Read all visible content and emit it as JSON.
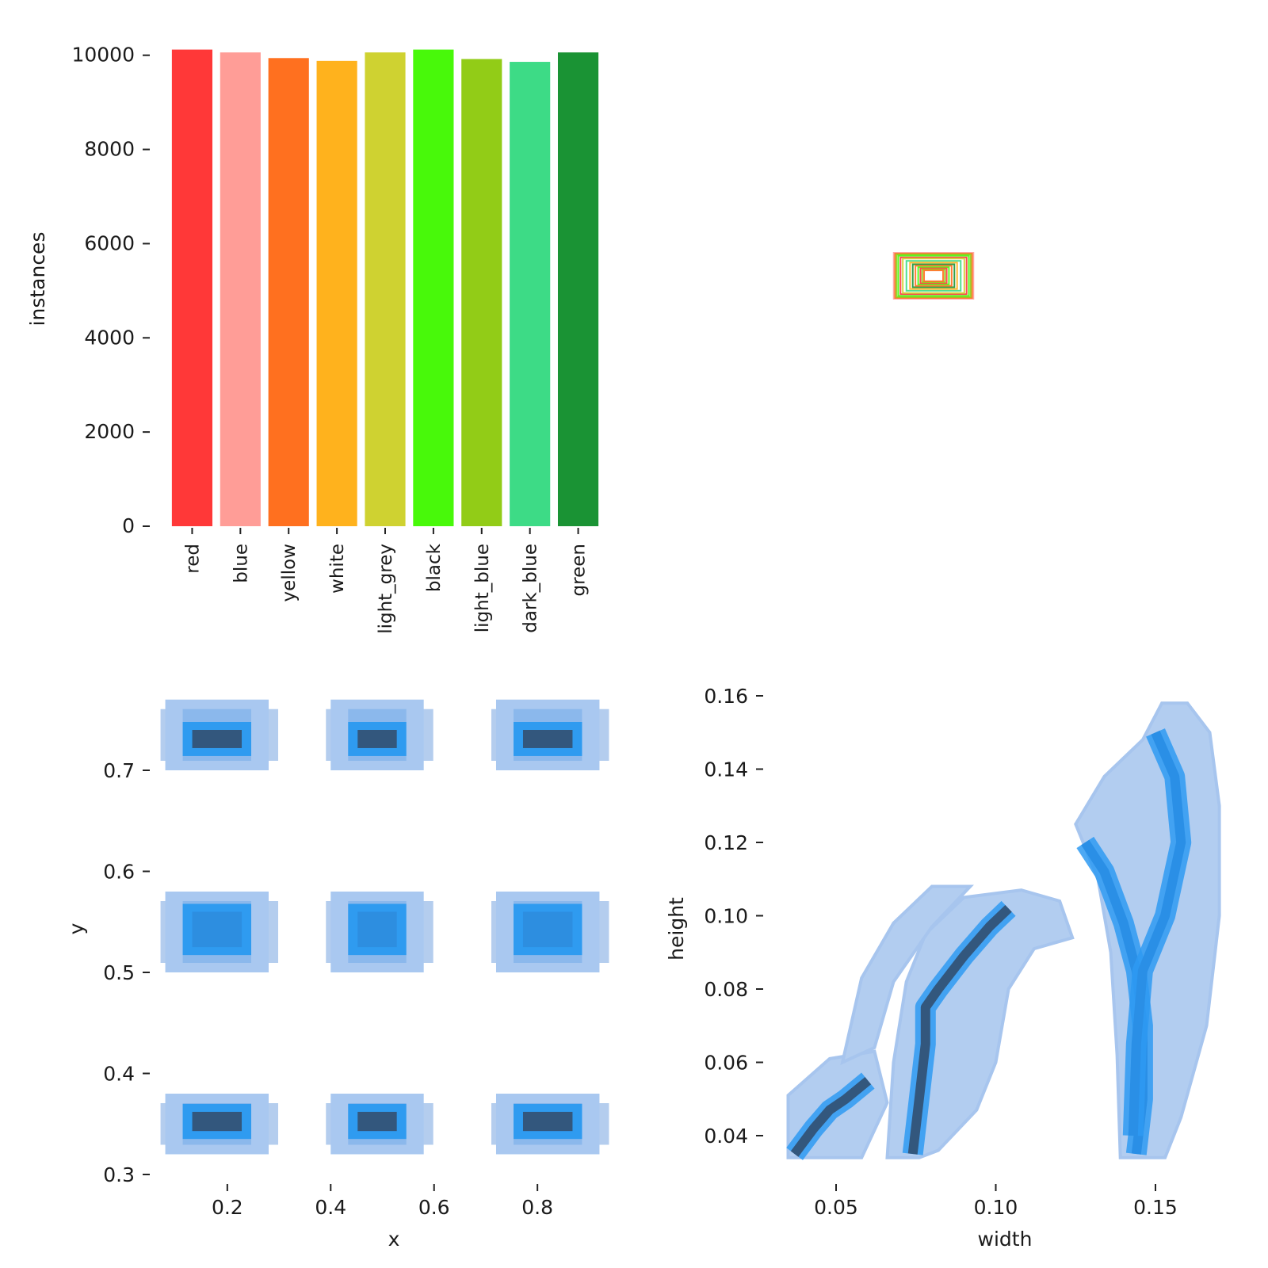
{
  "chart_data": [
    {
      "type": "bar",
      "ylabel": "instances",
      "xlabel": "",
      "ylim": [
        0,
        10500
      ],
      "yticks": [
        0,
        2000,
        4000,
        6000,
        8000,
        10000
      ],
      "categories": [
        "red",
        "blue",
        "yellow",
        "white",
        "light_grey",
        "black",
        "light_blue",
        "dark_blue",
        "green"
      ],
      "values": [
        10120,
        10060,
        9940,
        9880,
        10060,
        10120,
        9920,
        9860,
        10060
      ],
      "colors": [
        "#ff3838",
        "#ff9d97",
        "#ff701f",
        "#ffb21d",
        "#cfd231",
        "#48f90a",
        "#92cc17",
        "#3ddb86",
        "#1a9334"
      ]
    },
    {
      "type": "box_overlay",
      "description_level": "nested rectangles centered at 0.5,0.5",
      "boxes": [
        {
          "w": 0.176,
          "h": 0.16,
          "color": "#ff9d97"
        },
        {
          "w": 0.17,
          "h": 0.154,
          "color": "#ff701f"
        },
        {
          "w": 0.164,
          "h": 0.148,
          "color": "#92cc17"
        },
        {
          "w": 0.156,
          "h": 0.14,
          "color": "#48f90a"
        },
        {
          "w": 0.146,
          "h": 0.128,
          "color": "#ff3838"
        },
        {
          "w": 0.136,
          "h": 0.12,
          "color": "#cfd231"
        },
        {
          "w": 0.12,
          "h": 0.104,
          "color": "#3ddb86"
        },
        {
          "w": 0.104,
          "h": 0.092,
          "color": "#ffb21d"
        },
        {
          "w": 0.092,
          "h": 0.08,
          "color": "#1a9334"
        },
        {
          "w": 0.08,
          "h": 0.07,
          "color": "#ff701f"
        },
        {
          "w": 0.068,
          "h": 0.06,
          "color": "#48f90a"
        },
        {
          "w": 0.058,
          "h": 0.052,
          "color": "#ff3838"
        },
        {
          "w": 0.05,
          "h": 0.044,
          "color": "#92cc17"
        },
        {
          "w": 0.042,
          "h": 0.038,
          "color": "#ff701f"
        }
      ]
    },
    {
      "type": "heatmap",
      "xlabel": "x",
      "ylabel": "y",
      "xlim": [
        0.05,
        0.95
      ],
      "ylim": [
        0.3,
        0.78
      ],
      "xticks": [
        0.2,
        0.4,
        0.6,
        0.8
      ],
      "yticks": [
        0.3,
        0.4,
        0.5,
        0.6,
        0.7
      ],
      "clusters": [
        {
          "x": [
            0.08,
            0.28
          ],
          "y": [
            0.32,
            0.38
          ],
          "core_y": [
            0.343,
            0.362
          ],
          "core": "dark"
        },
        {
          "x": [
            0.4,
            0.58
          ],
          "y": [
            0.32,
            0.38
          ],
          "core_y": [
            0.343,
            0.362
          ],
          "core": "dark"
        },
        {
          "x": [
            0.72,
            0.92
          ],
          "y": [
            0.32,
            0.38
          ],
          "core_y": [
            0.343,
            0.362
          ],
          "core": "dark"
        },
        {
          "x": [
            0.08,
            0.28
          ],
          "y": [
            0.5,
            0.58
          ],
          "core_y": [
            0.525,
            0.56
          ],
          "core": "mid"
        },
        {
          "x": [
            0.4,
            0.58
          ],
          "y": [
            0.5,
            0.58
          ],
          "core_y": [
            0.525,
            0.56
          ],
          "core": "mid"
        },
        {
          "x": [
            0.72,
            0.92
          ],
          "y": [
            0.5,
            0.58
          ],
          "core_y": [
            0.525,
            0.56
          ],
          "core": "mid"
        },
        {
          "x": [
            0.08,
            0.28
          ],
          "y": [
            0.7,
            0.77
          ],
          "core_y": [
            0.722,
            0.74
          ],
          "core": "dark"
        },
        {
          "x": [
            0.4,
            0.58
          ],
          "y": [
            0.7,
            0.77
          ],
          "core_y": [
            0.722,
            0.74
          ],
          "core": "dark"
        },
        {
          "x": [
            0.72,
            0.92
          ],
          "y": [
            0.7,
            0.77
          ],
          "core_y": [
            0.722,
            0.74
          ],
          "core": "dark"
        }
      ]
    },
    {
      "type": "heatmap",
      "xlabel": "width",
      "ylabel": "height",
      "xlim": [
        0.034,
        0.176
      ],
      "ylim": [
        0.034,
        0.16
      ],
      "xticks": [
        0.05,
        0.1,
        0.15
      ],
      "xtick_labels": [
        "0.05",
        "0.10",
        "0.15"
      ],
      "yticks": [
        0.04,
        0.06,
        0.08,
        0.1,
        0.12,
        0.14,
        0.16
      ],
      "ytick_labels": [
        "0.04",
        "0.06",
        "0.08",
        "0.10",
        "0.12",
        "0.14",
        "0.16"
      ],
      "regions": [
        {
          "pts": [
            [
              0.035,
              0.034
            ],
            [
              0.035,
              0.051
            ],
            [
              0.048,
              0.061
            ],
            [
              0.062,
              0.063
            ],
            [
              0.066,
              0.049
            ],
            [
              0.058,
              0.034
            ]
          ]
        },
        {
          "pts": [
            [
              0.066,
              0.034
            ],
            [
              0.068,
              0.06
            ],
            [
              0.072,
              0.082
            ],
            [
              0.078,
              0.095
            ],
            [
              0.09,
              0.105
            ],
            [
              0.108,
              0.107
            ],
            [
              0.12,
              0.104
            ],
            [
              0.124,
              0.094
            ],
            [
              0.112,
              0.091
            ],
            [
              0.104,
              0.08
            ],
            [
              0.1,
              0.06
            ],
            [
              0.094,
              0.047
            ],
            [
              0.082,
              0.036
            ],
            [
              0.076,
              0.034
            ]
          ]
        },
        {
          "pts": [
            [
              0.052,
              0.06
            ],
            [
              0.058,
              0.083
            ],
            [
              0.068,
              0.098
            ],
            [
              0.08,
              0.108
            ],
            [
              0.092,
              0.108
            ],
            [
              0.08,
              0.097
            ],
            [
              0.068,
              0.082
            ],
            [
              0.062,
              0.064
            ]
          ]
        },
        {
          "pts": [
            [
              0.139,
              0.034
            ],
            [
              0.138,
              0.062
            ],
            [
              0.136,
              0.09
            ],
            [
              0.132,
              0.11
            ],
            [
              0.125,
              0.125
            ],
            [
              0.134,
              0.138
            ],
            [
              0.146,
              0.148
            ],
            [
              0.152,
              0.158
            ],
            [
              0.16,
              0.158
            ],
            [
              0.167,
              0.15
            ],
            [
              0.17,
              0.13
            ],
            [
              0.17,
              0.1
            ],
            [
              0.166,
              0.07
            ],
            [
              0.158,
              0.045
            ],
            [
              0.153,
              0.034
            ]
          ]
        }
      ],
      "ridges": [
        {
          "pts": [
            [
              0.037,
              0.035
            ],
            [
              0.043,
              0.042
            ],
            [
              0.048,
              0.047
            ],
            [
              0.053,
              0.05
            ],
            [
              0.06,
              0.055
            ]
          ],
          "color": "dark"
        },
        {
          "pts": [
            [
              0.074,
              0.035
            ],
            [
              0.076,
              0.05
            ],
            [
              0.078,
              0.065
            ],
            [
              0.078,
              0.075
            ],
            [
              0.082,
              0.08
            ],
            [
              0.09,
              0.089
            ],
            [
              0.098,
              0.097
            ],
            [
              0.104,
              0.102
            ]
          ],
          "color": "dark"
        },
        {
          "pts": [
            [
              0.128,
              0.12
            ],
            [
              0.134,
              0.112
            ],
            [
              0.14,
              0.098
            ],
            [
              0.144,
              0.085
            ],
            [
              0.146,
              0.07
            ],
            [
              0.146,
              0.05
            ],
            [
              0.144,
              0.035
            ]
          ],
          "color": "mid"
        },
        {
          "pts": [
            [
              0.15,
              0.15
            ],
            [
              0.156,
              0.138
            ],
            [
              0.158,
              0.12
            ],
            [
              0.153,
              0.1
            ],
            [
              0.146,
              0.085
            ],
            [
              0.144,
              0.065
            ],
            [
              0.143,
              0.04
            ]
          ],
          "color": "mid"
        }
      ]
    }
  ]
}
